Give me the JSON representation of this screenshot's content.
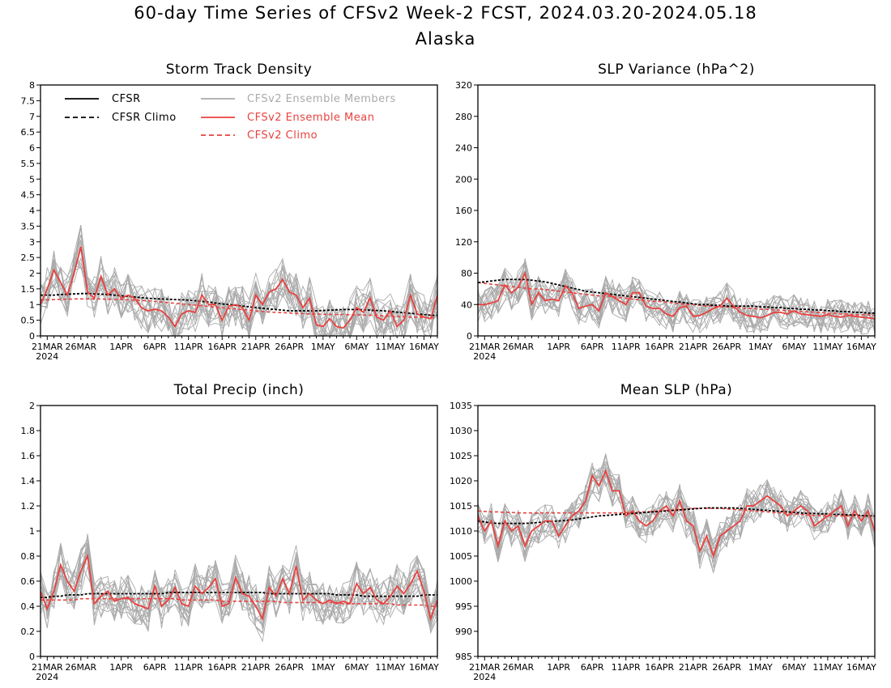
{
  "header": {
    "title": "60-day Time Series of CFSv2 Week-2 FCST, 2024.03.20-2024.05.18",
    "subtitle": "Alaska"
  },
  "colors": {
    "cfsr": "#000000",
    "cfsr_climo": "#000000",
    "ensemble_members": "#aaaaaa",
    "ensemble_mean": "#e8423f",
    "cfsv2_climo": "#e8423f"
  },
  "x_ticks": [
    "21MAR",
    "26MAR",
    "1APR",
    "6APR",
    "11APR",
    "16APR",
    "21APR",
    "26APR",
    "1MAY",
    "6MAY",
    "11MAY",
    "16MAY"
  ],
  "x_year_label": "2024",
  "legend": {
    "cfsr": "CFSR",
    "cfsr_climo": "CFSR Climo",
    "members": "CFSv2 Ensemble Members",
    "mean": "CFSv2 Ensemble Mean",
    "cfsv2_climo": "CFSv2 Climo"
  },
  "chart_data": [
    {
      "type": "line",
      "title": "Storm Track Density",
      "x": "daily, 2024-03-20 to 2024-05-18",
      "ylim": [
        0,
        8
      ],
      "yticks": [
        "0",
        "0.5",
        "1",
        "1.5",
        "2",
        "2.5",
        "3",
        "3.5",
        "4",
        "4.5",
        "5",
        "5.5",
        "6",
        "6.5",
        "7",
        "7.5",
        "8"
      ],
      "series": [
        {
          "name": "CFSv2 Ensemble Mean",
          "values": [
            1.0,
            1.5,
            2.1,
            1.7,
            1.3,
            2.0,
            2.85,
            1.4,
            1.2,
            1.9,
            1.3,
            1.5,
            1.2,
            1.3,
            1.2,
            0.9,
            0.8,
            0.85,
            0.8,
            0.6,
            0.3,
            0.7,
            0.8,
            0.75,
            1.3,
            1.0,
            1.0,
            0.5,
            0.95,
            1.0,
            0.9,
            0.5,
            1.3,
            1.0,
            1.4,
            1.5,
            1.8,
            1.4,
            1.3,
            0.9,
            1.2,
            0.35,
            0.3,
            0.55,
            0.3,
            0.25,
            0.5,
            0.9,
            0.75,
            1.2,
            0.6,
            0.5,
            0.8,
            0.3,
            0.5,
            1.3,
            0.7,
            0.6,
            0.55,
            1.3
          ]
        },
        {
          "name": "CFSR Climo",
          "values": [
            1.3,
            1.3,
            1.3,
            1.32,
            1.33,
            1.34,
            1.35,
            1.35,
            1.34,
            1.33,
            1.32,
            1.3,
            1.28,
            1.26,
            1.24,
            1.22,
            1.2,
            1.19,
            1.18,
            1.17,
            1.16,
            1.15,
            1.14,
            1.12,
            1.1,
            1.08,
            1.05,
            1.02,
            1.0,
            0.98,
            0.95,
            0.93,
            0.9,
            0.88,
            0.86,
            0.84,
            0.82,
            0.8,
            0.8,
            0.8,
            0.8,
            0.8,
            0.81,
            0.82,
            0.83,
            0.84,
            0.84,
            0.84,
            0.83,
            0.82,
            0.81,
            0.8,
            0.78,
            0.76,
            0.74,
            0.72,
            0.7,
            0.68,
            0.66,
            0.65
          ]
        },
        {
          "name": "CFSv2 Climo",
          "values": [
            1.15,
            1.15,
            1.16,
            1.17,
            1.17,
            1.18,
            1.18,
            1.18,
            1.18,
            1.18,
            1.17,
            1.17,
            1.16,
            1.15,
            1.14,
            1.13,
            1.12,
            1.1,
            1.08,
            1.06,
            1.04,
            1.02,
            1.0,
            0.98,
            0.96,
            0.94,
            0.92,
            0.9,
            0.88,
            0.86,
            0.84,
            0.82,
            0.8,
            0.78,
            0.76,
            0.75,
            0.74,
            0.73,
            0.72,
            0.71,
            0.7,
            0.7,
            0.69,
            0.69,
            0.68,
            0.68,
            0.67,
            0.67,
            0.66,
            0.66,
            0.65,
            0.64,
            0.63,
            0.62,
            0.61,
            0.6,
            0.6,
            0.59,
            0.58,
            0.58
          ]
        }
      ],
      "members": {
        "name": "CFSv2 Ensemble Members",
        "count": 16,
        "spread": 0.7
      }
    },
    {
      "type": "line",
      "title": "SLP Variance (hPa^2)",
      "x": "daily, 2024-03-20 to 2024-05-18",
      "ylim": [
        0,
        320
      ],
      "yticks": [
        "0",
        "40",
        "80",
        "120",
        "160",
        "200",
        "240",
        "280",
        "320"
      ],
      "series": [
        {
          "name": "CFSv2 Ensemble Mean",
          "values": [
            40,
            40,
            42,
            45,
            65,
            55,
            62,
            80,
            40,
            55,
            45,
            47,
            45,
            64,
            55,
            35,
            38,
            40,
            32,
            55,
            50,
            45,
            40,
            55,
            55,
            38,
            35,
            35,
            28,
            25,
            36,
            38,
            25,
            26,
            30,
            35,
            38,
            48,
            38,
            30,
            26,
            25,
            23,
            26,
            30,
            30,
            28,
            32,
            28,
            27,
            26,
            25,
            27,
            25,
            24,
            26,
            25,
            24,
            23,
            22
          ]
        },
        {
          "name": "CFSR Climo",
          "values": [
            68,
            69,
            70,
            71,
            72,
            72,
            72,
            72,
            71,
            70,
            69,
            67,
            65,
            63,
            61,
            59,
            57,
            56,
            55,
            54,
            53,
            52,
            51,
            50,
            49,
            48,
            47,
            46,
            45,
            44,
            43,
            42,
            41,
            40,
            40,
            39,
            39,
            38,
            38,
            38,
            38,
            38,
            37,
            37,
            36,
            36,
            35,
            35,
            34,
            34,
            33,
            33,
            32,
            32,
            31,
            31,
            30,
            30,
            29,
            29
          ]
        },
        {
          "name": "CFSv2 Climo",
          "values": [
            68,
            67,
            66,
            65,
            64,
            63,
            62,
            61,
            60,
            60,
            59,
            58,
            57,
            56,
            55,
            54,
            53,
            52,
            51,
            51,
            50,
            49,
            48,
            47,
            46,
            45,
            44,
            44,
            43,
            42,
            41,
            40,
            40,
            39,
            38,
            38,
            37,
            37,
            36,
            36,
            35,
            35,
            34,
            34,
            33,
            33,
            32,
            32,
            31,
            31,
            30,
            30,
            29,
            29,
            28,
            28,
            27,
            27,
            27,
            26
          ]
        }
      ],
      "members": {
        "name": "CFSv2 Ensemble Members",
        "count": 16,
        "spread": 22
      }
    },
    {
      "type": "line",
      "title": "Total Precip (inch)",
      "x": "daily, 2024-03-20 to 2024-05-18",
      "ylim": [
        0,
        2
      ],
      "yticks": [
        "0",
        "0.2",
        "0.4",
        "0.6",
        "0.8",
        "1",
        "1.2",
        "1.4",
        "1.6",
        "1.8",
        "2"
      ],
      "series": [
        {
          "name": "CFSv2 Ensemble Mean",
          "values": [
            0.52,
            0.38,
            0.52,
            0.73,
            0.6,
            0.52,
            0.68,
            0.8,
            0.42,
            0.48,
            0.52,
            0.44,
            0.46,
            0.47,
            0.42,
            0.4,
            0.38,
            0.56,
            0.4,
            0.45,
            0.55,
            0.42,
            0.4,
            0.56,
            0.5,
            0.55,
            0.62,
            0.4,
            0.42,
            0.63,
            0.5,
            0.48,
            0.4,
            0.3,
            0.55,
            0.48,
            0.62,
            0.5,
            0.72,
            0.45,
            0.5,
            0.45,
            0.42,
            0.45,
            0.42,
            0.44,
            0.42,
            0.58,
            0.5,
            0.55,
            0.45,
            0.42,
            0.48,
            0.56,
            0.5,
            0.58,
            0.68,
            0.52,
            0.3,
            0.45
          ]
        },
        {
          "name": "CFSR Climo",
          "values": [
            0.47,
            0.47,
            0.48,
            0.48,
            0.49,
            0.49,
            0.49,
            0.5,
            0.5,
            0.5,
            0.5,
            0.5,
            0.5,
            0.5,
            0.5,
            0.5,
            0.5,
            0.5,
            0.5,
            0.51,
            0.51,
            0.51,
            0.51,
            0.51,
            0.51,
            0.51,
            0.51,
            0.51,
            0.51,
            0.51,
            0.51,
            0.51,
            0.51,
            0.51,
            0.5,
            0.5,
            0.5,
            0.5,
            0.5,
            0.5,
            0.5,
            0.5,
            0.5,
            0.5,
            0.49,
            0.49,
            0.49,
            0.49,
            0.48,
            0.48,
            0.48,
            0.48,
            0.48,
            0.48,
            0.48,
            0.48,
            0.48,
            0.49,
            0.49,
            0.49
          ]
        },
        {
          "name": "CFSv2 Climo",
          "values": [
            0.45,
            0.45,
            0.45,
            0.45,
            0.45,
            0.45,
            0.46,
            0.46,
            0.46,
            0.46,
            0.46,
            0.46,
            0.46,
            0.46,
            0.46,
            0.46,
            0.46,
            0.46,
            0.46,
            0.46,
            0.46,
            0.45,
            0.45,
            0.45,
            0.45,
            0.45,
            0.45,
            0.44,
            0.44,
            0.44,
            0.44,
            0.44,
            0.44,
            0.44,
            0.44,
            0.44,
            0.43,
            0.43,
            0.43,
            0.43,
            0.43,
            0.43,
            0.43,
            0.43,
            0.43,
            0.42,
            0.42,
            0.42,
            0.42,
            0.42,
            0.42,
            0.42,
            0.42,
            0.41,
            0.41,
            0.41,
            0.41,
            0.41,
            0.4,
            0.4
          ]
        }
      ],
      "members": {
        "name": "CFSv2 Ensemble Members",
        "count": 16,
        "spread": 0.18
      }
    },
    {
      "type": "line",
      "title": "Mean SLP (hPa)",
      "x": "daily, 2024-03-20 to 2024-05-18",
      "ylim": [
        985,
        1035
      ],
      "yticks": [
        "985",
        "990",
        "995",
        "1000",
        "1005",
        "1010",
        "1015",
        "1020",
        "1025",
        "1030",
        "1035"
      ],
      "series": [
        {
          "name": "CFSv2 Ensemble Mean",
          "values": [
            1013,
            1010,
            1012,
            1007,
            1012,
            1010,
            1011,
            1007,
            1010,
            1011,
            1012,
            1012,
            1009,
            1011,
            1013,
            1014,
            1016,
            1021,
            1019,
            1022,
            1018,
            1018,
            1013,
            1014,
            1012,
            1011,
            1012,
            1014,
            1015,
            1013,
            1016,
            1012,
            1011,
            1006,
            1009,
            1005,
            1009,
            1010,
            1011,
            1012,
            1015,
            1015,
            1016,
            1017,
            1016,
            1015,
            1013,
            1014,
            1015,
            1014,
            1011,
            1012,
            1013,
            1014,
            1015,
            1011,
            1014,
            1012,
            1014,
            1010
          ]
        },
        {
          "name": "CFSR Climo",
          "values": [
            1012,
            1011.8,
            1011.6,
            1011.5,
            1011.5,
            1011.5,
            1011.5,
            1011.5,
            1011.6,
            1011.7,
            1011.8,
            1011.9,
            1012,
            1012.1,
            1012.2,
            1012.4,
            1012.6,
            1012.8,
            1013,
            1013.1,
            1013.2,
            1013.3,
            1013.4,
            1013.5,
            1013.6,
            1013.7,
            1013.8,
            1013.9,
            1014,
            1014.1,
            1014.2,
            1014.3,
            1014.4,
            1014.5,
            1014.6,
            1014.6,
            1014.6,
            1014.6,
            1014.6,
            1014.5,
            1014.4,
            1014.3,
            1014.2,
            1014.1,
            1014,
            1013.9,
            1013.8,
            1013.7,
            1013.6,
            1013.5,
            1013.5,
            1013.4,
            1013.4,
            1013.3,
            1013.3,
            1013.2,
            1013.2,
            1013.1,
            1013,
            1013
          ]
        },
        {
          "name": "CFSv2 Climo",
          "values": [
            1014,
            1013.9,
            1013.8,
            1013.8,
            1013.7,
            1013.7,
            1013.6,
            1013.6,
            1013.6,
            1013.6,
            1013.6,
            1013.6,
            1013.6,
            1013.6,
            1013.6,
            1013.6,
            1013.6,
            1013.6,
            1013.6,
            1013.6,
            1013.6,
            1013.6,
            1013.7,
            1013.7,
            1013.8,
            1013.8,
            1013.9,
            1014,
            1014.1,
            1014.2,
            1014.3,
            1014.4,
            1014.5,
            1014.5,
            1014.5,
            1014.5,
            1014.5,
            1014.4,
            1014.3,
            1014.2,
            1014.1,
            1014,
            1013.9,
            1013.8,
            1013.7,
            1013.6,
            1013.5,
            1013.4,
            1013.3,
            1013.2,
            1013.1,
            1013.1,
            1013,
            1013,
            1013,
            1013,
            1013,
            1013,
            1013,
            1013
          ]
        }
      ],
      "members": {
        "name": "CFSv2 Ensemble Members",
        "count": 16,
        "spread": 3.5
      }
    }
  ]
}
